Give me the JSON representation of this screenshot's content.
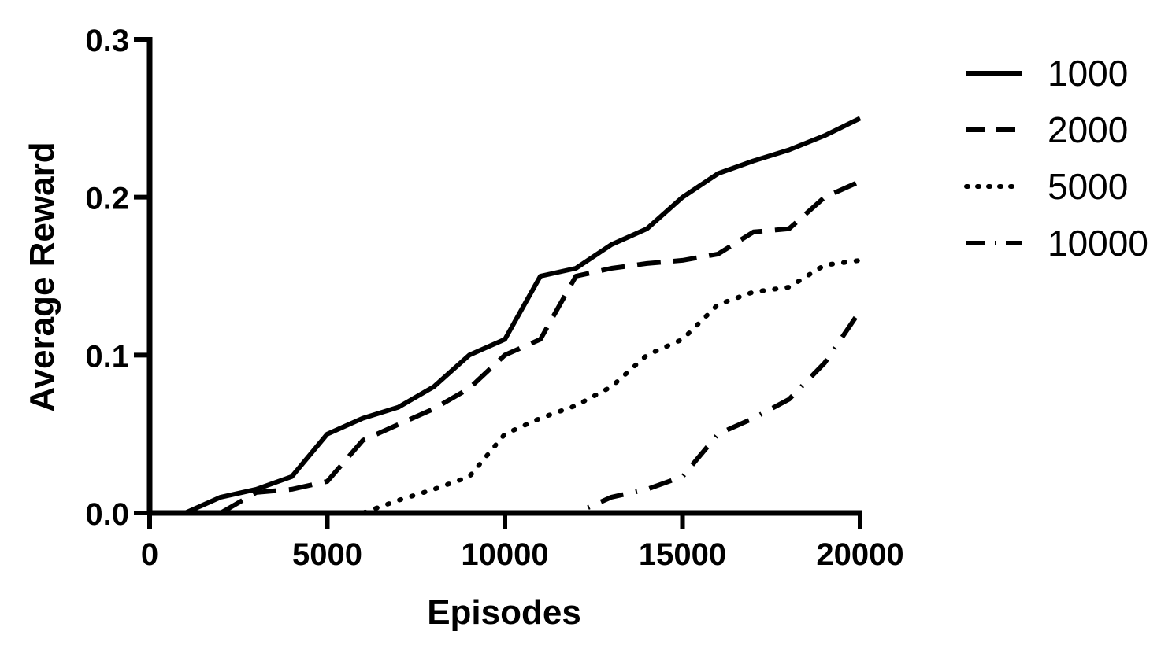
{
  "chart_data": {
    "type": "line",
    "xlabel": "Episodes",
    "ylabel": "Average Reward",
    "xlim": [
      0,
      20000
    ],
    "ylim": [
      0,
      0.3
    ],
    "xticks": [
      "0",
      "5000",
      "10000",
      "15000",
      "20000"
    ],
    "yticks": [
      "0.0",
      "0.1",
      "0.2",
      "0.3"
    ],
    "grid": false,
    "legend_position": "right",
    "line_color": "#000000",
    "x": [
      0,
      1000,
      2000,
      3000,
      4000,
      5000,
      6000,
      7000,
      8000,
      9000,
      10000,
      11000,
      12000,
      13000,
      14000,
      15000,
      16000,
      17000,
      18000,
      19000,
      20000
    ],
    "series": [
      {
        "name": "1000",
        "style": "solid",
        "values": [
          0,
          0,
          0.01,
          0.015,
          0.023,
          0.05,
          0.06,
          0.067,
          0.08,
          0.1,
          0.11,
          0.15,
          0.155,
          0.17,
          0.18,
          0.2,
          0.215,
          0.223,
          0.23,
          0.239,
          0.25
        ]
      },
      {
        "name": "2000",
        "style": "dashed",
        "values": [
          0,
          0,
          0,
          0.013,
          0.015,
          0.02,
          0.046,
          0.056,
          0.066,
          0.079,
          0.1,
          0.11,
          0.15,
          0.155,
          0.158,
          0.16,
          0.164,
          0.178,
          0.18,
          0.2,
          0.21
        ]
      },
      {
        "name": "5000",
        "style": "dotted",
        "values": [
          0,
          0,
          0,
          0,
          0,
          0,
          0,
          0.008,
          0.015,
          0.023,
          0.05,
          0.06,
          0.068,
          0.08,
          0.1,
          0.11,
          0.132,
          0.14,
          0.143,
          0.157,
          0.16
        ]
      },
      {
        "name": "10000",
        "style": "dashdot",
        "values": [
          0,
          0,
          0,
          0,
          0,
          0,
          0,
          0,
          0,
          0,
          0,
          0,
          0,
          0.01,
          0.015,
          0.023,
          0.05,
          0.06,
          0.072,
          0.095,
          0.128
        ]
      }
    ]
  }
}
